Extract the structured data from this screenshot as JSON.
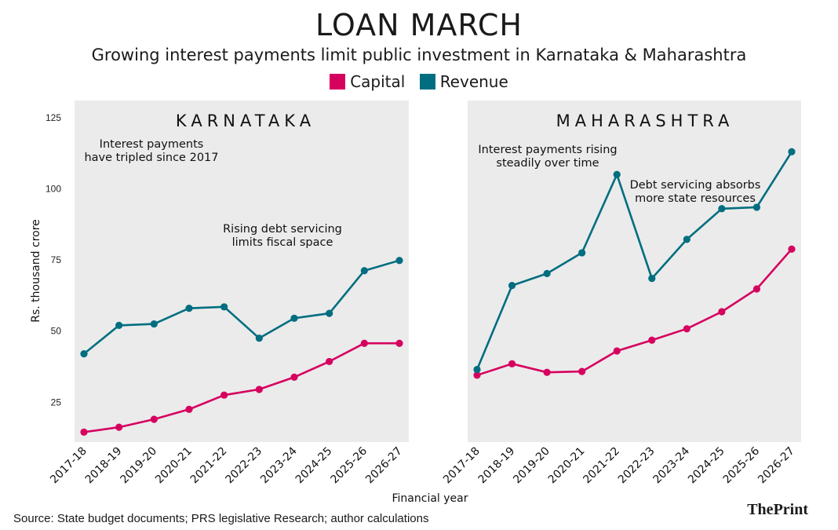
{
  "title": "LOAN MARCH",
  "subtitle": "Growing interest payments limit public investment in Karnataka & Maharashtra",
  "legend": [
    {
      "label": "Capital",
      "color": "#d6005f"
    },
    {
      "label": "Revenue",
      "color": "#006e80"
    }
  ],
  "source": "Source: State budget documents; PRS legislative Research; author calculations",
  "logo": {
    "the": "The",
    "print": "Print"
  },
  "chart_data": [
    {
      "type": "line",
      "panel_title": "KARNATAKA",
      "x": [
        "2017-18",
        "2018-19",
        "2019-20",
        "2020-21",
        "2021-22",
        "2022-23",
        "2023-24",
        "2024-25",
        "2025-26",
        "2026-27"
      ],
      "series": [
        {
          "name": "Capital",
          "color": "#d6005f",
          "values": [
            14.5,
            16.2,
            19.0,
            22.5,
            27.5,
            29.5,
            33.8,
            39.3,
            45.7,
            45.7
          ]
        },
        {
          "name": "Revenue",
          "color": "#006e80",
          "values": [
            42.0,
            52.0,
            52.5,
            58.0,
            58.5,
            47.5,
            54.5,
            56.2,
            71.2,
            74.8
          ]
        }
      ],
      "annotations": [
        {
          "lines": [
            "Interest payments",
            "have tripled since 2017"
          ]
        },
        {
          "lines": [
            "Rising debt servicing",
            "limits fiscal space"
          ]
        }
      ],
      "ylabel": "Rs. thousand crore",
      "yticks": [
        25,
        50,
        75,
        100,
        125
      ],
      "ylim": [
        11,
        131
      ]
    },
    {
      "type": "line",
      "panel_title": "MAHARASHTRA",
      "x": [
        "2017-18",
        "2018-19",
        "2019-20",
        "2020-21",
        "2021-22",
        "2022-23",
        "2023-24",
        "2024-25",
        "2025-26",
        "2026-27"
      ],
      "series": [
        {
          "name": "Capital",
          "color": "#d6005f",
          "values": [
            34.5,
            38.5,
            35.5,
            35.8,
            43.0,
            46.8,
            50.8,
            56.8,
            64.8,
            78.8
          ]
        },
        {
          "name": "Revenue",
          "color": "#006e80",
          "values": [
            36.5,
            66.0,
            70.2,
            77.5,
            105.0,
            68.5,
            82.2,
            93.0,
            93.5,
            113.0
          ]
        }
      ],
      "annotations": [
        {
          "lines": [
            "Interest payments rising",
            "steadily over time"
          ]
        },
        {
          "lines": [
            "Debt servicing absorbs",
            "more state resources"
          ]
        }
      ],
      "yticks": [],
      "ylim": [
        11,
        131
      ]
    }
  ],
  "xlabel": "Financial year"
}
